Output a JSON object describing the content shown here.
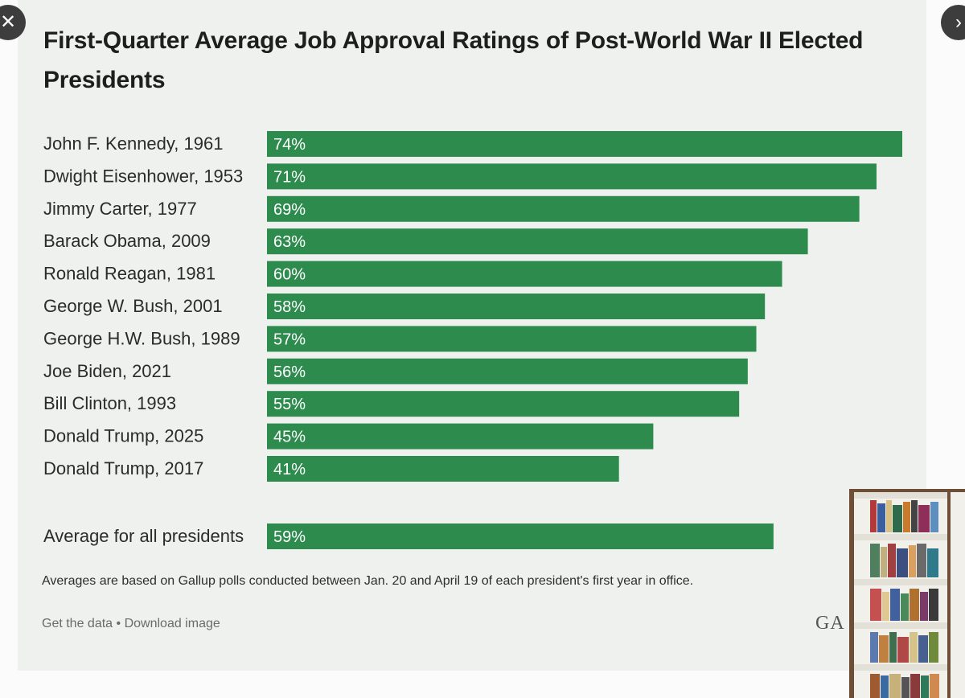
{
  "chart_data": {
    "type": "bar",
    "orientation": "horizontal",
    "title": "First-Quarter Average Job Approval Ratings of Post-World War II Elected Presidents",
    "categories": [
      "John F. Kennedy, 1961",
      "Dwight Eisenhower, 1953",
      "Jimmy Carter, 1977",
      "Barack Obama, 2009",
      "Ronald Reagan, 1981",
      "George W. Bush, 2001",
      "George H.W. Bush, 1989",
      "Joe Biden, 2021",
      "Bill Clinton, 1993",
      "Donald Trump, 2025",
      "Donald Trump, 2017"
    ],
    "values": [
      74,
      71,
      69,
      63,
      60,
      58,
      57,
      56,
      55,
      45,
      41
    ],
    "value_labels": [
      "74%",
      "71%",
      "69%",
      "63%",
      "60%",
      "58%",
      "57%",
      "56%",
      "55%",
      "45%",
      "41%"
    ],
    "average": {
      "label": "Average for all presidents",
      "value": 59,
      "value_label": "59%"
    },
    "xlim": [
      0,
      74
    ],
    "bar_color": "#2e8b4e",
    "xlabel": "",
    "ylabel": ""
  },
  "footnote": "Averages are based on Gallup polls conducted between Jan. 20 and April 19 of each president's first year in office.",
  "footer": {
    "get_data": "Get the data",
    "separator": "•",
    "download": "Download image"
  },
  "logo_text": "GA",
  "controls": {
    "close_glyph": "✕",
    "next_glyph": "›"
  },
  "icons": {
    "close": "close-icon",
    "next": "chevron-right-icon"
  }
}
